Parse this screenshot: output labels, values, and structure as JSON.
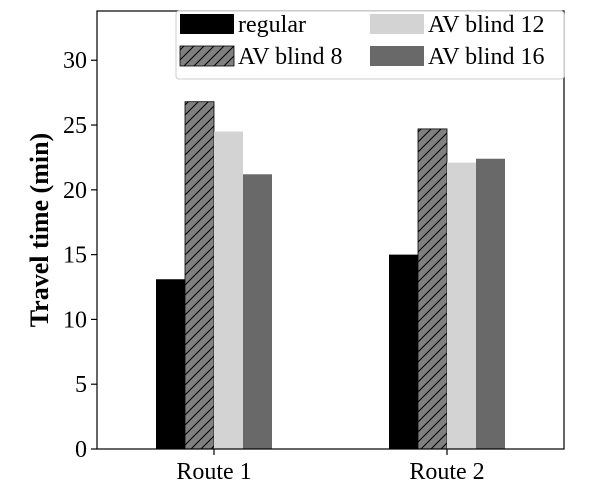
{
  "chart_data": {
    "type": "bar",
    "title": "",
    "xlabel": "",
    "ylabel": "Travel time (min)",
    "categories": [
      "Route 1",
      "Route 2"
    ],
    "ylim": [
      0,
      33.8
    ],
    "yticks": [
      0,
      5,
      10,
      15,
      20,
      25,
      30
    ],
    "grid": false,
    "legend_placement": "top-right",
    "legend_columns": 2,
    "series": [
      {
        "name": "regular",
        "values": [
          13.1,
          15.0
        ],
        "color": "#000000",
        "pattern": "solid"
      },
      {
        "name": "AV blind 8",
        "values": [
          26.8,
          24.7
        ],
        "color": "#808080",
        "pattern": "diagonal-hatch"
      },
      {
        "name": "AV blind 12",
        "values": [
          24.5,
          22.1
        ],
        "color": "#d3d3d3",
        "pattern": "solid"
      },
      {
        "name": "AV blind 16",
        "values": [
          21.2,
          22.4
        ],
        "color": "#696969",
        "pattern": "solid"
      }
    ]
  }
}
